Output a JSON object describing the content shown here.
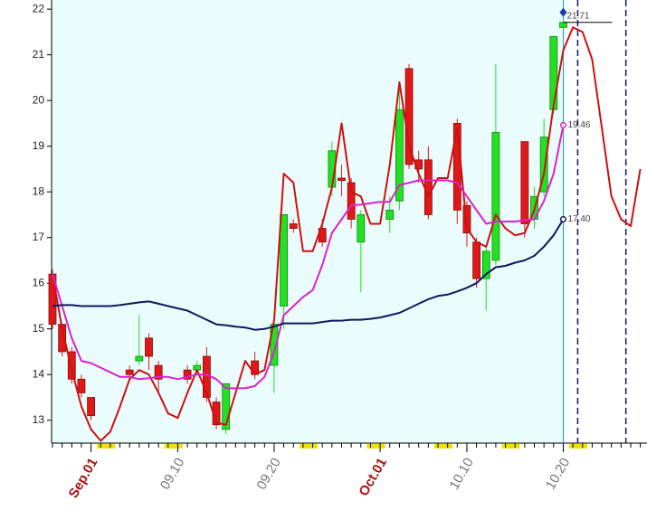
{
  "chart_data": {
    "type": "candlestick",
    "categories": [
      null,
      null,
      null,
      null,
      "Sep.01",
      null,
      null,
      null,
      null,
      null,
      null,
      null,
      null,
      "09.10",
      null,
      null,
      null,
      null,
      null,
      null,
      null,
      null,
      null,
      "09.20",
      null,
      null,
      null,
      null,
      null,
      null,
      null,
      null,
      null,
      null,
      "Oct.01",
      null,
      null,
      null,
      null,
      null,
      null,
      null,
      null,
      "10.10",
      null,
      null,
      null,
      null,
      null,
      null,
      null,
      null,
      null,
      "10.20",
      null,
      null,
      null,
      null,
      null,
      null,
      null,
      null
    ],
    "open": [
      16.2,
      15.1,
      14.5,
      13.9,
      13.5,
      null,
      null,
      null,
      14.1,
      14.3,
      14.8,
      14.2,
      null,
      null,
      14.1,
      14.1,
      14.4,
      13.4,
      12.8,
      null,
      null,
      14.3,
      null,
      14.2,
      15.5,
      17.3,
      null,
      null,
      17.2,
      18.1,
      18.3,
      18.2,
      16.9,
      null,
      null,
      17.4,
      17.8,
      20.7,
      18.7,
      18.7,
      null,
      null,
      19.5,
      17.7,
      16.9,
      16.1,
      16.5,
      null,
      null,
      19.1,
      17.4,
      18.0,
      19.8,
      21.6,
      null,
      null,
      null,
      null,
      null,
      null,
      null,
      null
    ],
    "high": [
      16.3,
      15.1,
      14.6,
      14.0,
      13.5,
      null,
      null,
      null,
      14.2,
      15.3,
      14.9,
      14.3,
      null,
      null,
      14.2,
      14.3,
      14.6,
      13.5,
      13.8,
      null,
      null,
      14.5,
      null,
      15.2,
      17.5,
      17.4,
      null,
      null,
      17.4,
      19.1,
      18.6,
      18.3,
      17.6,
      null,
      null,
      17.9,
      20.4,
      20.8,
      18.9,
      19.0,
      null,
      null,
      19.6,
      17.8,
      17.0,
      16.8,
      20.8,
      null,
      null,
      19.1,
      18.1,
      19.6,
      21.4,
      21.75,
      null,
      null,
      null,
      null,
      null,
      null,
      null,
      null
    ],
    "low": [
      15.0,
      14.4,
      13.8,
      13.5,
      13.0,
      null,
      null,
      null,
      13.9,
      14.2,
      14.1,
      13.6,
      null,
      null,
      13.8,
      14.0,
      13.4,
      12.8,
      12.7,
      null,
      null,
      13.9,
      null,
      13.6,
      15.0,
      17.1,
      null,
      null,
      16.8,
      17.9,
      17.9,
      17.2,
      15.8,
      null,
      null,
      17.1,
      17.6,
      18.5,
      18.2,
      17.4,
      null,
      null,
      17.3,
      16.8,
      15.9,
      15.4,
      16.4,
      null,
      null,
      17.0,
      17.2,
      17.9,
      19.7,
      21.55,
      null,
      null,
      null,
      null,
      null,
      null,
      null,
      null
    ],
    "close": [
      15.1,
      14.5,
      13.9,
      13.6,
      13.1,
      null,
      null,
      null,
      14.0,
      14.4,
      14.4,
      13.9,
      null,
      null,
      13.9,
      14.2,
      13.5,
      12.9,
      13.8,
      null,
      null,
      14.0,
      null,
      15.1,
      17.5,
      17.2,
      null,
      null,
      16.9,
      18.9,
      18.25,
      17.4,
      17.5,
      null,
      null,
      17.6,
      19.8,
      18.6,
      18.5,
      17.5,
      null,
      null,
      17.6,
      17.1,
      16.1,
      16.7,
      19.3,
      null,
      null,
      17.3,
      17.9,
      19.2,
      21.4,
      21.71,
      null,
      null,
      null,
      null,
      null,
      null,
      null,
      null
    ],
    "up_color": "#22e022",
    "down_color": "#e01818",
    "last_label": "21.71",
    "peak_marker": 21.93,
    "lines": [
      {
        "color": "#d01010",
        "values": [
          16.2,
          15.0,
          14.1,
          13.3,
          12.8,
          12.55,
          12.75,
          13.3,
          13.9,
          14.1,
          14.0,
          13.6,
          13.15,
          13.05,
          13.6,
          14.1,
          13.6,
          12.95,
          12.9,
          13.6,
          14.3,
          14.0,
          14.1,
          15.2,
          18.4,
          18.2,
          16.7,
          16.7,
          17.3,
          18.1,
          19.5,
          18.0,
          17.9,
          17.3,
          17.3,
          18.6,
          20.4,
          19.0,
          18.4,
          17.9,
          18.3,
          18.3,
          19.4,
          17.2,
          16.9,
          16.8,
          17.5,
          17.2,
          17.05,
          17.1,
          17.6,
          18.4,
          19.9,
          21.1,
          21.6,
          21.5,
          20.9,
          19.4,
          17.9,
          17.4,
          17.25,
          18.5
        ]
      },
      {
        "color": "#e020d0",
        "last_label": "19.46",
        "values": [
          16.2,
          15.5,
          14.8,
          14.3,
          14.25,
          14.15,
          14.05,
          13.95,
          13.95,
          13.9,
          13.92,
          13.95,
          13.95,
          13.9,
          13.95,
          14.0,
          14.0,
          13.9,
          13.7,
          13.7,
          13.7,
          13.75,
          13.95,
          14.5,
          15.3,
          15.5,
          15.7,
          15.85,
          16.4,
          17.1,
          17.4,
          17.7,
          17.72,
          17.75,
          17.78,
          17.78,
          18.15,
          18.2,
          18.25,
          18.25,
          18.25,
          18.25,
          18.2,
          17.9,
          17.6,
          17.3,
          17.35,
          17.35,
          17.35,
          17.38,
          17.4,
          17.8,
          18.4,
          19.46,
          null,
          null,
          null,
          null,
          null,
          null,
          null,
          null
        ]
      },
      {
        "color": "#101860",
        "last_label": "17.40",
        "values": [
          15.5,
          15.52,
          15.52,
          15.5,
          15.5,
          15.5,
          15.5,
          15.52,
          15.55,
          15.58,
          15.6,
          15.55,
          15.5,
          15.45,
          15.4,
          15.3,
          15.2,
          15.1,
          15.08,
          15.05,
          15.03,
          14.98,
          15.0,
          15.05,
          15.12,
          15.12,
          15.12,
          15.12,
          15.15,
          15.18,
          15.18,
          15.2,
          15.2,
          15.22,
          15.25,
          15.3,
          15.35,
          15.45,
          15.55,
          15.65,
          15.72,
          15.75,
          15.82,
          15.9,
          16.0,
          16.2,
          16.35,
          16.38,
          16.45,
          16.5,
          16.6,
          16.8,
          17.05,
          17.4,
          null,
          null,
          null,
          null,
          null,
          null,
          null,
          null
        ]
      }
    ],
    "ylim": [
      12.5,
      22.2
    ],
    "yticks": [
      13,
      14,
      15,
      16,
      17,
      18,
      19,
      20,
      21,
      22
    ],
    "grid": false
  }
}
